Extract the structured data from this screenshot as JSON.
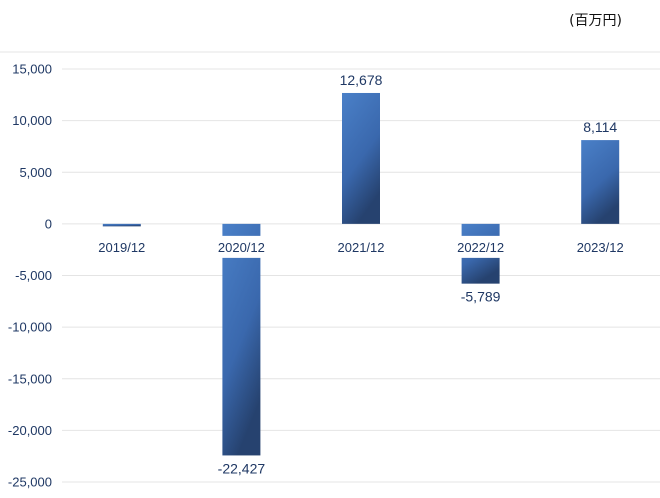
{
  "unit_label": "(百万円)",
  "chart_data": {
    "type": "bar",
    "title": "",
    "xlabel": "",
    "ylabel": "",
    "categories": [
      "2019/12",
      "2020/12",
      "2021/12",
      "2022/12",
      "2023/12"
    ],
    "values": [
      -240,
      -22427,
      12678,
      -5789,
      8114
    ],
    "data_labels": [
      "",
      "-22,427",
      "12,678",
      "-5,789",
      "8,114"
    ],
    "ylim": [
      -25000,
      15000
    ],
    "yticks": [
      15000,
      10000,
      5000,
      0,
      -5000,
      -10000,
      -15000,
      -20000,
      -25000
    ],
    "ytick_labels": [
      "15,000",
      "10,000",
      "5,000",
      "0",
      "-5,000",
      "-10,000",
      "-15,000",
      "-20,000",
      "-25,000"
    ],
    "grid": true,
    "bar_color": "#3f6fb5",
    "bar_color_dark": "#2b4a80"
  }
}
